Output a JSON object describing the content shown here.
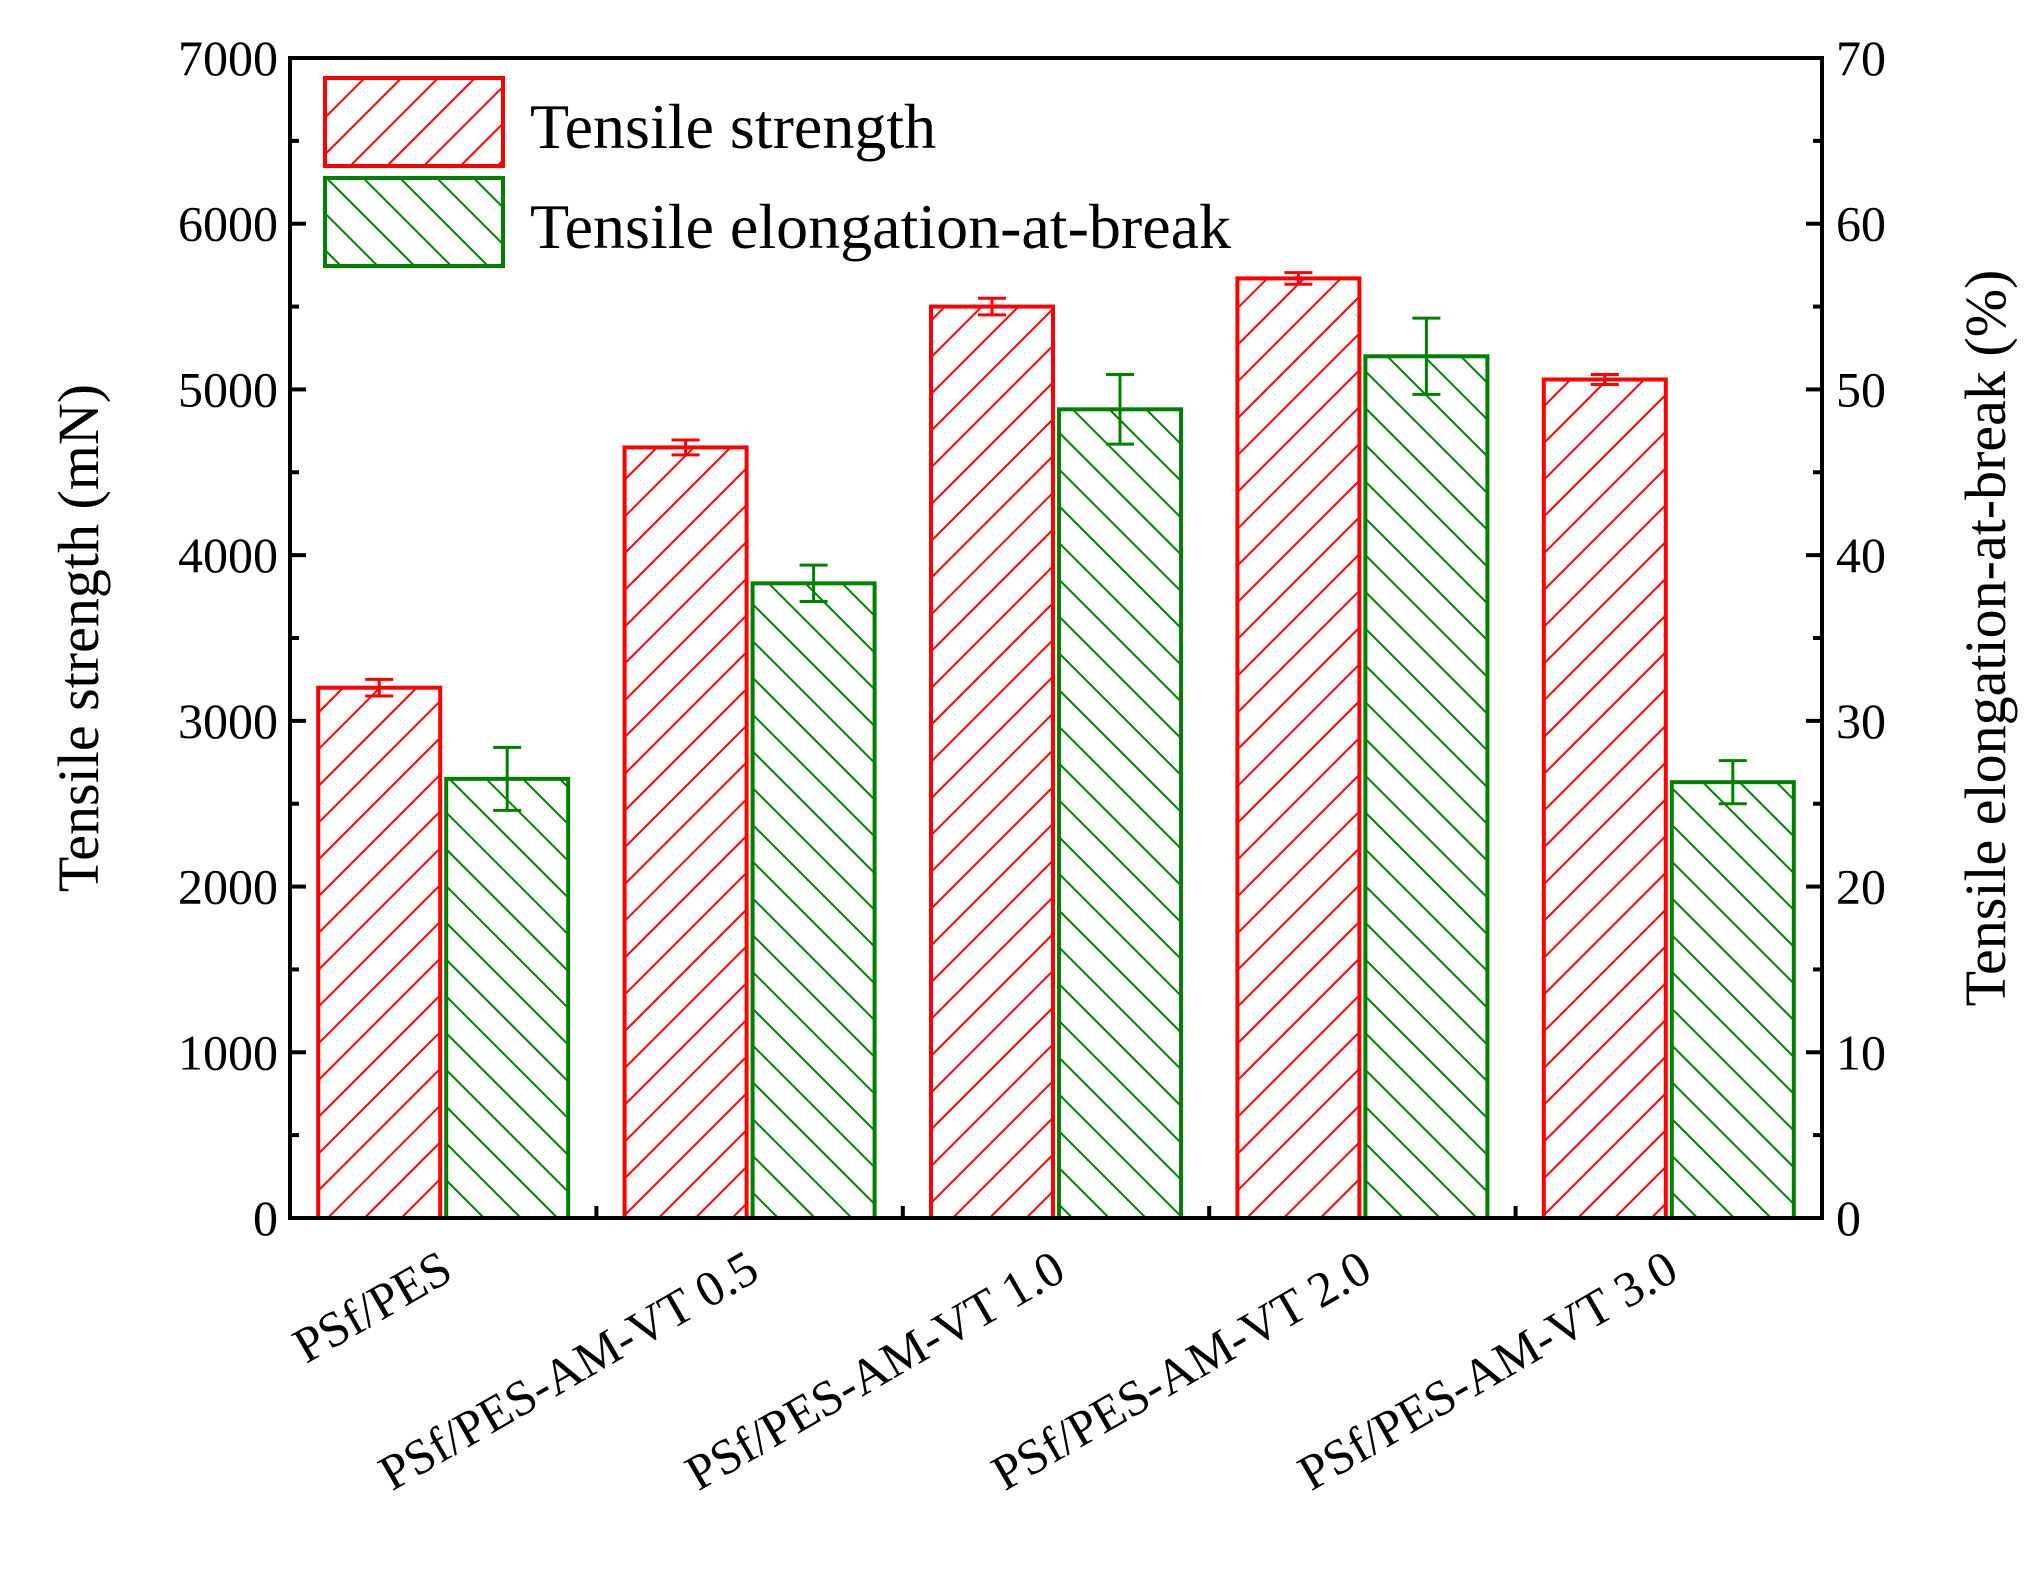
{
  "chart_data": {
    "type": "bar",
    "categories": [
      "PSf/PES",
      "PSf/PES-AM-VT 0.5",
      "PSf/PES-AM-VT 1.0",
      "PSf/PES-AM-VT 2.0",
      "PSf/PES-AM-VT 3.0"
    ],
    "series": [
      {
        "name": "Tensile strength",
        "axis": "left",
        "color": "#ff0000",
        "hatch": "forward",
        "values": [
          3200,
          4650,
          5500,
          5670,
          5060
        ],
        "errors": [
          50,
          45,
          50,
          35,
          30
        ]
      },
      {
        "name": "Tensile elongation-at-break",
        "axis": "right",
        "color": "#008000",
        "hatch": "backward",
        "values": [
          26.5,
          38.3,
          48.8,
          52.0,
          26.3
        ],
        "errors": [
          1.9,
          1.1,
          2.1,
          2.3,
          1.3
        ]
      }
    ],
    "ylabel": "Tensile strength (mN)",
    "y2label": "Tensile elongation-at-break (%)",
    "xlabel": "",
    "ylim": [
      0,
      7000
    ],
    "y2lim": [
      0,
      70
    ],
    "yticks": [
      "0",
      "1000",
      "2000",
      "3000",
      "4000",
      "5000",
      "6000",
      "7000"
    ],
    "y2ticks": [
      "0",
      "10",
      "20",
      "30",
      "40",
      "50",
      "60",
      "70"
    ],
    "legend": "top-left",
    "grid": false
  }
}
